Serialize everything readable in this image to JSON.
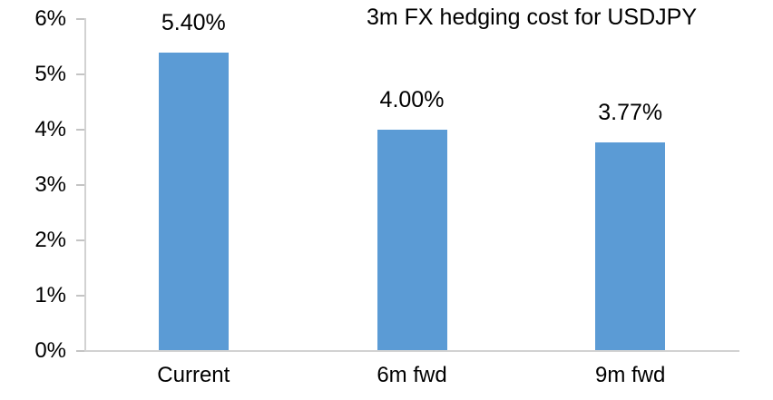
{
  "chart_data": {
    "type": "bar",
    "title": "3m FX hedging cost for USDJPY",
    "categories": [
      "Current",
      "6m fwd",
      "9m fwd"
    ],
    "values": [
      5.4,
      4.0,
      3.77
    ],
    "data_labels": [
      "5.40%",
      "4.00%",
      "3.77%"
    ],
    "xlabel": "",
    "ylabel": "",
    "ylim": [
      0,
      6
    ],
    "y_tick_interval": 1,
    "y_tick_labels": [
      "0%",
      "1%",
      "2%",
      "3%",
      "4%",
      "5%",
      "6%"
    ],
    "grid": false,
    "legend": "none",
    "bar_color": "#5B9BD5",
    "axis_color": "#D2D2D2",
    "tick_color": "#C4C4C4",
    "text_color": "#000000",
    "background_color": "#FFFFFF"
  }
}
